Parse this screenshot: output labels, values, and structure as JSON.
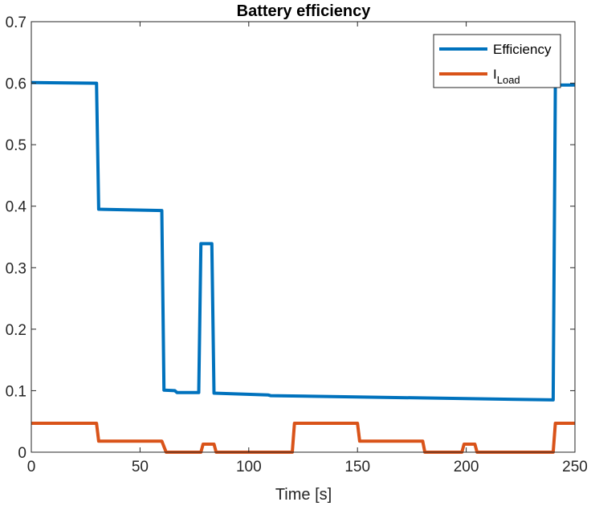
{
  "chart_data": {
    "type": "line",
    "title": "Battery efficiency",
    "xlabel": "Time [s]",
    "ylabel": "",
    "xlim": [
      0,
      250
    ],
    "ylim": [
      0,
      0.7
    ],
    "xticks": [
      0,
      50,
      100,
      150,
      200,
      250
    ],
    "yticks": [
      0,
      0.1,
      0.2,
      0.3,
      0.4,
      0.5,
      0.6,
      0.7
    ],
    "grid": false,
    "legend_position": "top-right",
    "series": [
      {
        "name": "Efficiency",
        "color": "#0072BD",
        "x": [
          0,
          30,
          31,
          60,
          61,
          66,
          67,
          77,
          78,
          83,
          84,
          109,
          110,
          240,
          241,
          250
        ],
        "y": [
          0.601,
          0.6,
          0.395,
          0.393,
          0.101,
          0.1,
          0.097,
          0.097,
          0.339,
          0.339,
          0.096,
          0.093,
          0.092,
          0.085,
          0.597,
          0.597
        ]
      },
      {
        "name": "I",
        "name_subscript": "Load",
        "color": "#D95319",
        "x": [
          0,
          30,
          31,
          60,
          62,
          78,
          79,
          84,
          85,
          120,
          121,
          150,
          151,
          180,
          181,
          198,
          199,
          204,
          205,
          240,
          241,
          250
        ],
        "y": [
          0.047,
          0.047,
          0.018,
          0.018,
          0,
          0,
          0.013,
          0.013,
          0,
          0,
          0.047,
          0.047,
          0.018,
          0.018,
          0,
          0,
          0.013,
          0.013,
          0,
          0,
          0.047,
          0.047
        ]
      }
    ]
  }
}
